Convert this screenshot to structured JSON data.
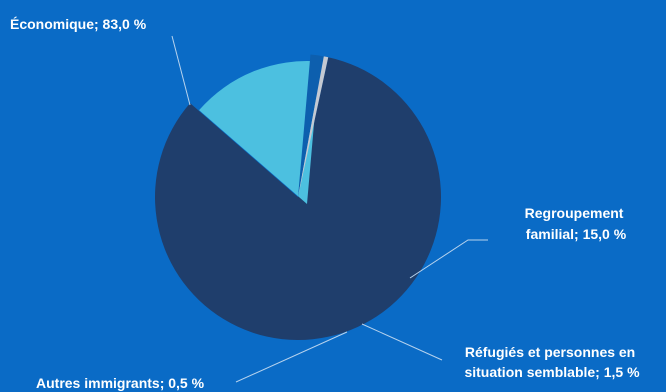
{
  "chart_data": {
    "type": "pie",
    "slices": [
      {
        "label": "Économique; 83,0 %",
        "name": "Économique",
        "value": 83.0,
        "color": "#1f3e6c"
      },
      {
        "label_lines": [
          "Regroupement",
          "familial; 15,0 %"
        ],
        "name": "Regroupement familial",
        "value": 15.0,
        "color": "#4cc0e0"
      },
      {
        "label_lines": [
          "Réfugiés et personnes en",
          "situation semblable; 1,5 %"
        ],
        "name": "Réfugiés et personnes en situation semblable",
        "value": 1.5,
        "color": "#0d5fae"
      },
      {
        "label": "Autres immigrants; 0,5 %",
        "name": "Autres immigrants",
        "value": 0.5,
        "color": "#c4c9d2"
      }
    ],
    "background": "#0a6bc6",
    "leader_line_color": "#b7d3ee"
  }
}
